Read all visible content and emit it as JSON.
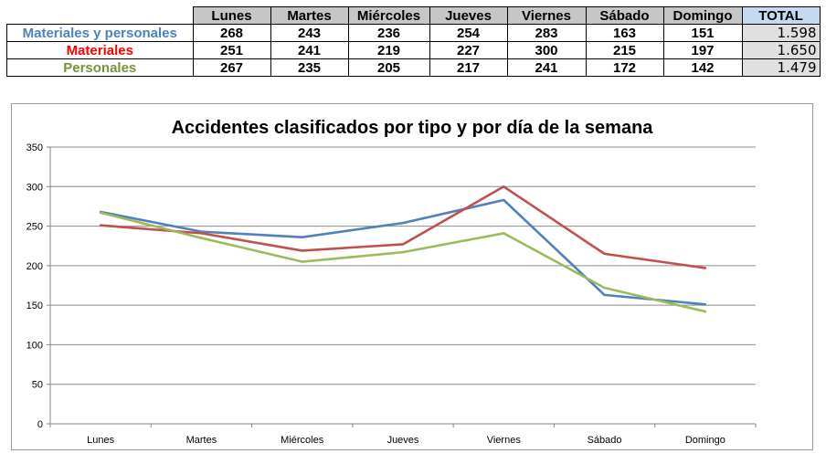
{
  "table": {
    "headers": [
      "",
      "Lunes",
      "Martes",
      "Miércoles",
      "Jueves",
      "Viernes",
      "Sábado",
      "Domingo",
      "TOTAL"
    ],
    "rows": [
      {
        "label": "Materiales y personales",
        "color": "#4f81bd",
        "values": [
          "268",
          "243",
          "236",
          "254",
          "283",
          "163",
          "151"
        ],
        "total": "1.598"
      },
      {
        "label": "Materiales",
        "color": "#ff0000",
        "values": [
          "251",
          "241",
          "219",
          "227",
          "300",
          "215",
          "197"
        ],
        "total": "1.650"
      },
      {
        "label": "Personales",
        "color": "#77933c",
        "values": [
          "267",
          "235",
          "205",
          "217",
          "241",
          "172",
          "142"
        ],
        "total": "1.479"
      }
    ]
  },
  "chart_data": {
    "type": "line",
    "title": "Accidentes clasificados por tipo y por día de la semana",
    "categories": [
      "Lunes",
      "Martes",
      "Miércoles",
      "Jueves",
      "Viernes",
      "Sábado",
      "Domingo"
    ],
    "series": [
      {
        "values": [
          268,
          243,
          236,
          254,
          283,
          163,
          151
        ],
        "color": "#4f81bd"
      },
      {
        "values": [
          251,
          241,
          219,
          227,
          300,
          215,
          197
        ],
        "color": "#c0504d"
      },
      {
        "values": [
          267,
          235,
          205,
          217,
          241,
          172,
          142
        ],
        "color": "#9bbb59"
      }
    ],
    "ylim": [
      0,
      350
    ],
    "yticks": [
      0,
      50,
      100,
      150,
      200,
      250,
      300,
      350
    ],
    "grid": true,
    "legend": "none",
    "xlabel": "",
    "ylabel": ""
  }
}
